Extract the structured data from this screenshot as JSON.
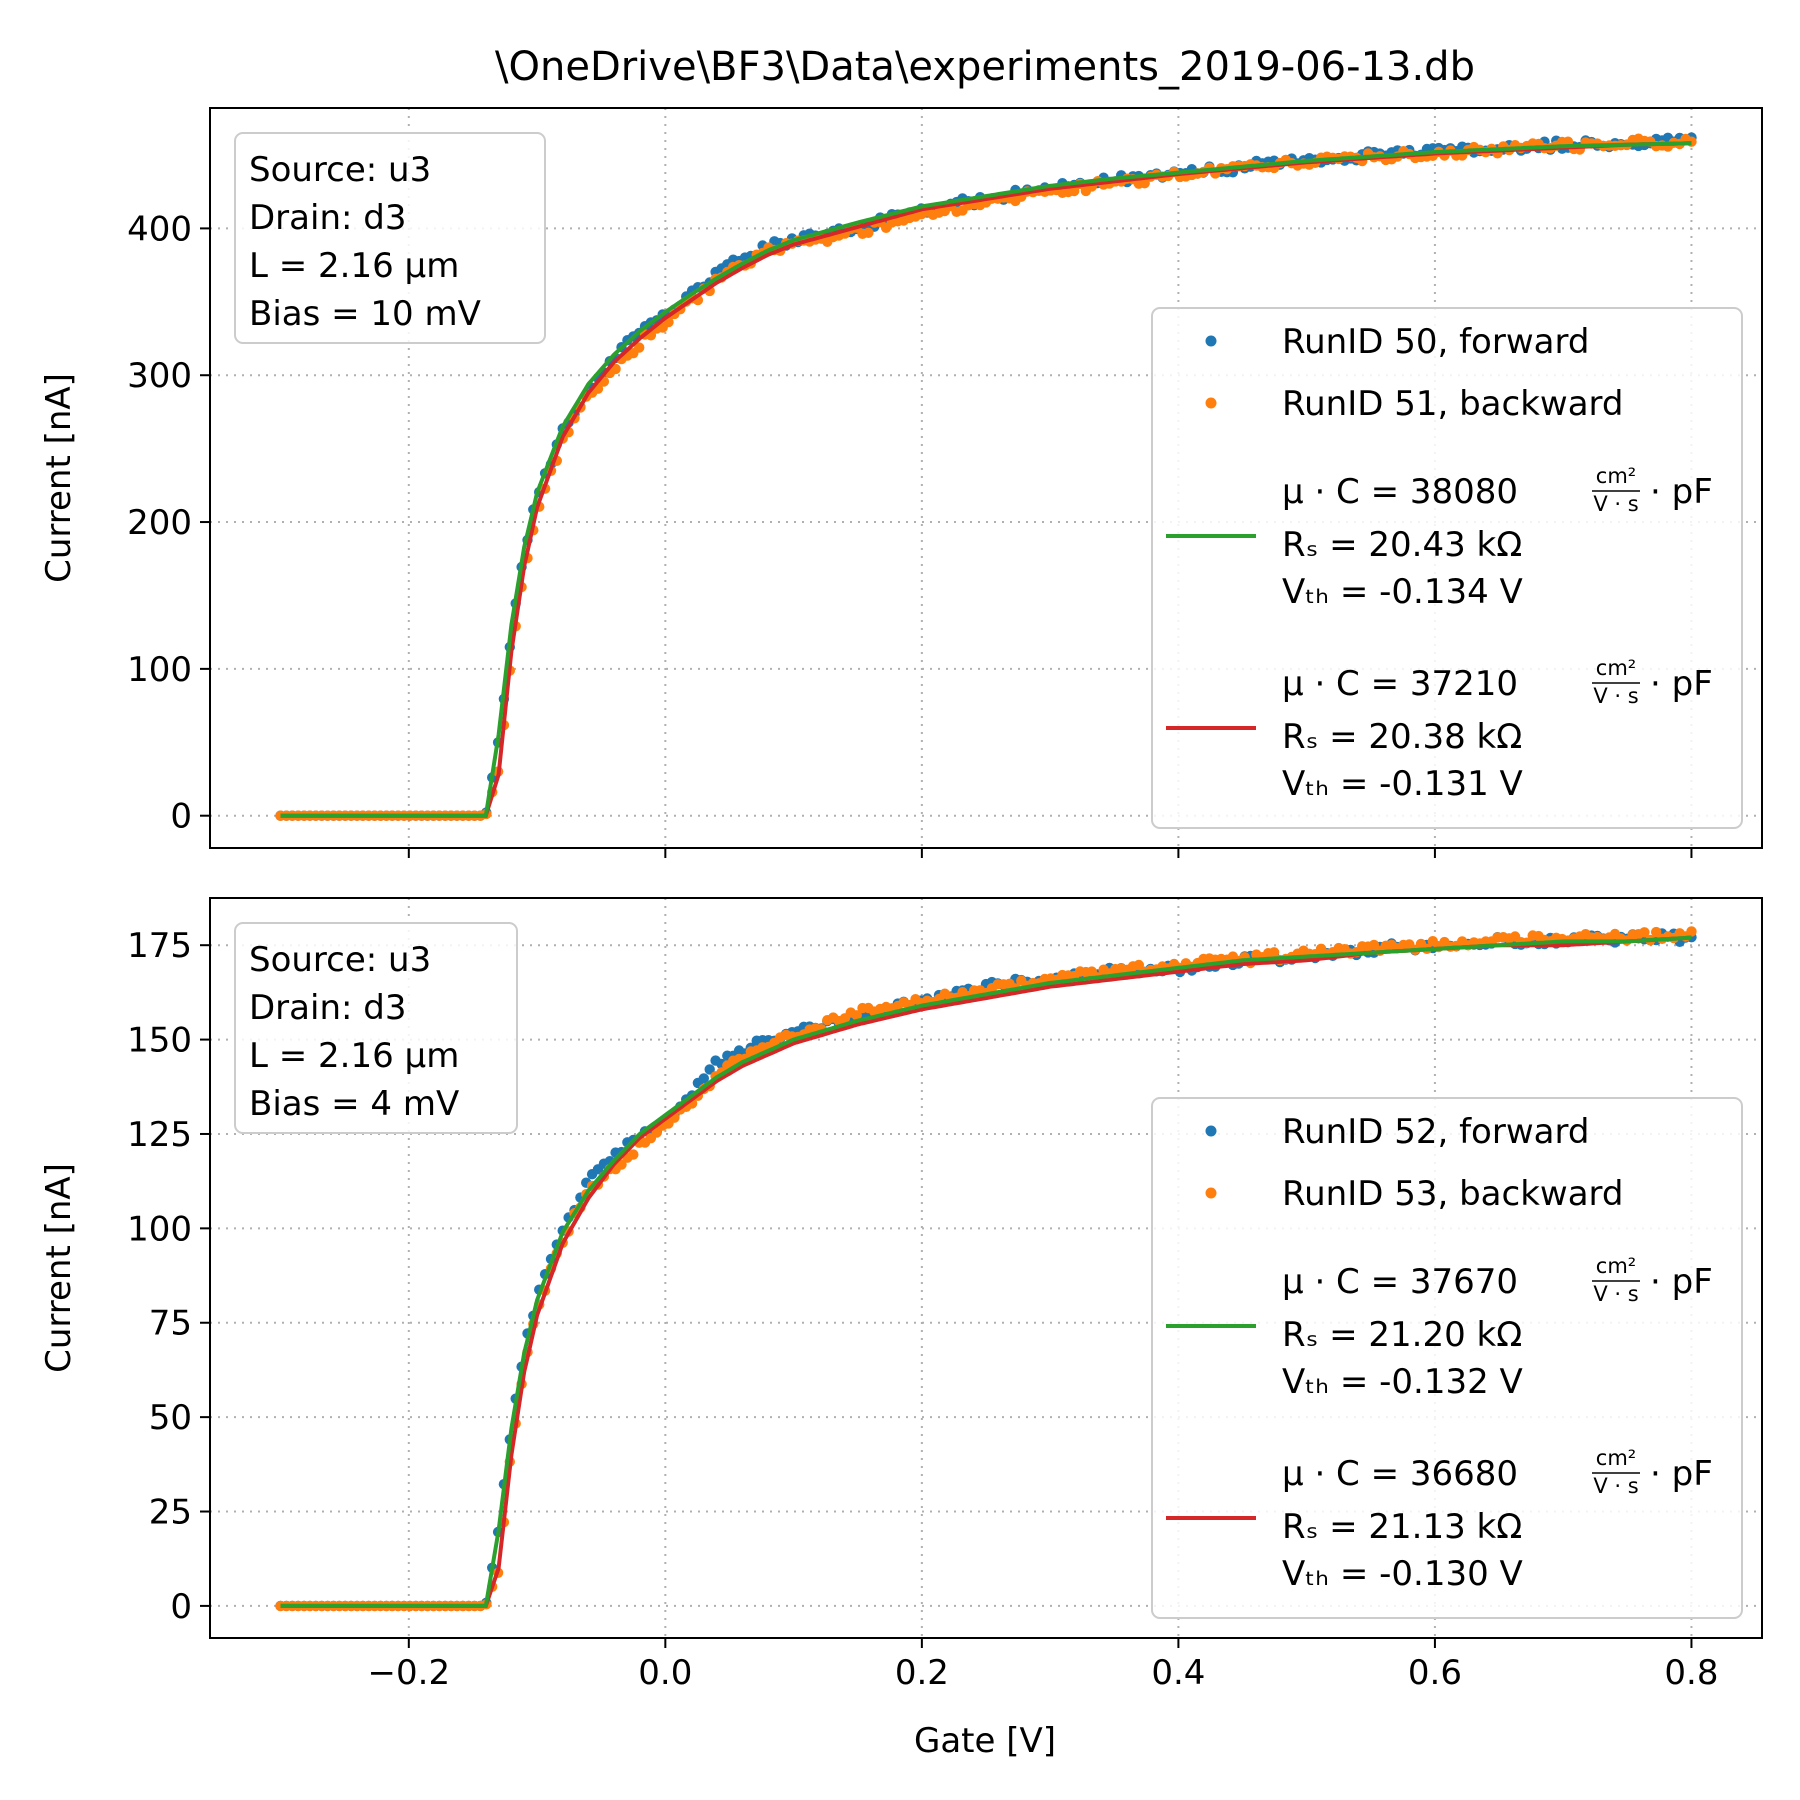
{
  "title": "\\OneDrive\\BF3\\Data\\experiments_2019-06-13.db",
  "colors": {
    "forward": "#1f77b4",
    "backward": "#ff7f0e",
    "fit_forward": "#2ca02c",
    "fit_backward": "#d62728",
    "grid": "#b0b0b0"
  },
  "shared_axis": {
    "xlabel": "Gate [V]",
    "xlim": [
      -0.355,
      0.855
    ],
    "xticks": [
      -0.2,
      0.0,
      0.2,
      0.4,
      0.6,
      0.8
    ],
    "xtick_labels": [
      "−0.2",
      "0.0",
      "0.2",
      "0.4",
      "0.6",
      "0.8"
    ]
  },
  "panels": [
    {
      "ylabel": "Current [nA]",
      "info": [
        "Source: u3",
        "Drain: d3",
        "L = 2.16 μm",
        "Bias = 10 mV"
      ],
      "legend": [
        {
          "kind": "point",
          "color": "forward",
          "label": "RunID 50, forward"
        },
        {
          "kind": "point",
          "color": "backward",
          "label": "RunID 51, backward"
        },
        {
          "kind": "line",
          "color": "fit_forward",
          "mu_prefix": "μ · C = 38080",
          "unit_num": "cm²",
          "unit_den": "V · s",
          "unit_suffix": "· pF",
          "rs": "Rₛ = 20.43 kΩ",
          "vth": "Vₜₕ = -0.134 V"
        },
        {
          "kind": "line",
          "color": "fit_backward",
          "mu_prefix": "μ · C = 37210",
          "unit_num": "cm²",
          "unit_den": "V · s",
          "unit_suffix": "· pF",
          "rs": "Rₛ = 20.38 kΩ",
          "vth": "Vₜₕ = -0.131 V"
        }
      ]
    },
    {
      "ylabel": "Current [nA]",
      "info": [
        "Source: u3",
        "Drain: d3",
        "L = 2.16 μm",
        "Bias = 4 mV"
      ],
      "legend": [
        {
          "kind": "point",
          "color": "forward",
          "label": "RunID 52, forward"
        },
        {
          "kind": "point",
          "color": "backward",
          "label": "RunID 53, backward"
        },
        {
          "kind": "line",
          "color": "fit_forward",
          "mu_prefix": "μ · C = 37670",
          "unit_num": "cm²",
          "unit_den": "V · s",
          "unit_suffix": "· pF",
          "rs": "Rₛ = 21.20 kΩ",
          "vth": "Vₜₕ = -0.132 V"
        },
        {
          "kind": "line",
          "color": "fit_backward",
          "mu_prefix": "μ · C = 36680",
          "unit_num": "cm²",
          "unit_den": "V · s",
          "unit_suffix": "· pF",
          "rs": "Rₛ = 21.13 kΩ",
          "vth": "Vₜₕ = -0.130 V"
        }
      ]
    }
  ],
  "chart_data": [
    {
      "type": "scatter",
      "title": "\\OneDrive\\BF3\\Data\\experiments_2019-06-13.db",
      "xlabel": "",
      "ylabel": "Current [nA]",
      "xlim": [
        -0.355,
        0.855
      ],
      "ylim": [
        -22,
        482
      ],
      "yticks": [
        0,
        100,
        200,
        300,
        400
      ],
      "grid": true,
      "legend_position": "lower right",
      "x": [
        -0.3,
        -0.2,
        -0.14,
        -0.13,
        -0.12,
        -0.11,
        -0.1,
        -0.08,
        -0.06,
        -0.04,
        -0.02,
        0.0,
        0.02,
        0.04,
        0.06,
        0.08,
        0.1,
        0.15,
        0.2,
        0.25,
        0.3,
        0.35,
        0.4,
        0.45,
        0.5,
        0.55,
        0.6,
        0.65,
        0.7,
        0.75,
        0.8
      ],
      "series": [
        {
          "name": "RunID 50, forward",
          "style": "points",
          "y": [
            0,
            0,
            0,
            50,
            125,
            180,
            218,
            262,
            290,
            312,
            330,
            342,
            355,
            370,
            380,
            387,
            392,
            400,
            413,
            420,
            428,
            433,
            437,
            442,
            447,
            450,
            452,
            455,
            457,
            458,
            460
          ]
        },
        {
          "name": "RunID 51, backward",
          "style": "points",
          "y": [
            0,
            0,
            0,
            30,
            110,
            165,
            205,
            255,
            285,
            305,
            322,
            337,
            350,
            364,
            376,
            384,
            389,
            398,
            410,
            418,
            425,
            431,
            436,
            441,
            446,
            449,
            451,
            454,
            456,
            458,
            459
          ]
        },
        {
          "name": "μ · C = 38080, Rₛ = 20.43 kΩ, Vₜₕ = -0.134 V",
          "style": "line",
          "y": [
            0,
            0,
            0,
            55,
            130,
            183,
            220,
            265,
            294,
            314,
            330,
            343,
            355,
            366,
            376,
            385,
            392,
            404,
            415,
            422,
            429,
            434,
            438,
            442,
            446,
            449,
            452,
            454,
            456,
            457,
            458
          ]
        },
        {
          "name": "μ · C = 37210, Rₛ = 20.38 kΩ, Vₜₕ = -0.131 V",
          "style": "line",
          "y": [
            0,
            0,
            0,
            28,
            112,
            170,
            210,
            258,
            288,
            309,
            325,
            339,
            351,
            363,
            373,
            382,
            389,
            401,
            413,
            420,
            427,
            432,
            437,
            441,
            445,
            448,
            451,
            453,
            455,
            457,
            458
          ]
        }
      ]
    },
    {
      "type": "scatter",
      "xlabel": "Gate [V]",
      "ylabel": "Current [nA]",
      "xlim": [
        -0.355,
        0.855
      ],
      "ylim": [
        -8.5,
        187.5
      ],
      "yticks": [
        0,
        25,
        50,
        75,
        100,
        125,
        150,
        175
      ],
      "grid": true,
      "legend_position": "lower right",
      "x": [
        -0.3,
        -0.2,
        -0.14,
        -0.13,
        -0.12,
        -0.11,
        -0.1,
        -0.08,
        -0.06,
        -0.04,
        -0.02,
        0.0,
        0.02,
        0.04,
        0.06,
        0.08,
        0.1,
        0.15,
        0.2,
        0.25,
        0.3,
        0.35,
        0.4,
        0.45,
        0.5,
        0.55,
        0.6,
        0.65,
        0.7,
        0.75,
        0.8
      ],
      "series": [
        {
          "name": "RunID 52, forward",
          "style": "points",
          "y": [
            0,
            0,
            0,
            20,
            48,
            68,
            82,
            100,
            112,
            120,
            124,
            128,
            136,
            144,
            147,
            150,
            152,
            156,
            160,
            164,
            166,
            168,
            169,
            171,
            172,
            174,
            175,
            176,
            176,
            177,
            177
          ]
        },
        {
          "name": "RunID 53, backward",
          "style": "points",
          "y": [
            0,
            0,
            0,
            10,
            42,
            63,
            78,
            97,
            110,
            116,
            122,
            128,
            133,
            140,
            145,
            149,
            151,
            157,
            160,
            163,
            166,
            168,
            170,
            171,
            173,
            174,
            175,
            176,
            177,
            177,
            178
          ]
        },
        {
          "name": "μ · C = 37670, Rₛ = 21.20 kΩ, Vₜₕ = -0.132 V",
          "style": "line",
          "y": [
            0,
            0,
            0,
            20,
            47,
            67,
            81,
            99,
            110,
            118,
            125,
            130,
            135,
            140,
            144,
            147,
            150,
            155,
            159,
            162,
            165,
            167,
            169,
            171,
            172,
            173,
            174,
            175,
            176,
            176,
            177
          ]
        },
        {
          "name": "μ · C = 36680, Rₛ = 21.13 kΩ, Vₜₕ = -0.130 V",
          "style": "line",
          "y": [
            0,
            0,
            0,
            10,
            40,
            62,
            77,
            96,
            108,
            117,
            124,
            129,
            134,
            139,
            143,
            146,
            149,
            154,
            158,
            161,
            164,
            166,
            168,
            170,
            171,
            173,
            174,
            175,
            175,
            176,
            177
          ]
        }
      ]
    }
  ]
}
